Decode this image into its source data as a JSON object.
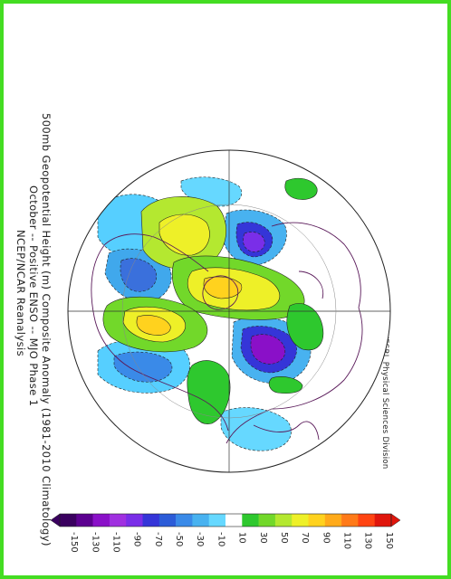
{
  "title": {
    "line1": "500mb Geopotential Height (m) Composite Anomaly (1981-2010 Climatology)",
    "line2": "October -- Positive ENSO -- MJO Phase 1",
    "line3": "NCEP/NCAR Reanalysis"
  },
  "source": "NOAA/ESRL Physical Sciences Division",
  "colorbar": {
    "ticks": [
      "-150",
      "-130",
      "-110",
      "-90",
      "-70",
      "-50",
      "-30",
      "-10",
      "10",
      "30",
      "50",
      "70",
      "90",
      "110",
      "130",
      "150"
    ],
    "colors": [
      "#3a005f",
      "#5c0090",
      "#8a10c8",
      "#a030e0",
      "#7a2ee8",
      "#3535d8",
      "#2c5cd8",
      "#3a8ae8",
      "#48b2f0",
      "#66d8ff",
      "#ffffff",
      "#2ec82e",
      "#72d82a",
      "#b4e830",
      "#eef028",
      "#ffd21e",
      "#ffaa1a",
      "#ff7a18",
      "#ff4412",
      "#e0160c"
    ]
  },
  "colors": {
    "frame": "#44dd22",
    "land_outline": "#5a1a5a",
    "contour": "#222222"
  }
}
